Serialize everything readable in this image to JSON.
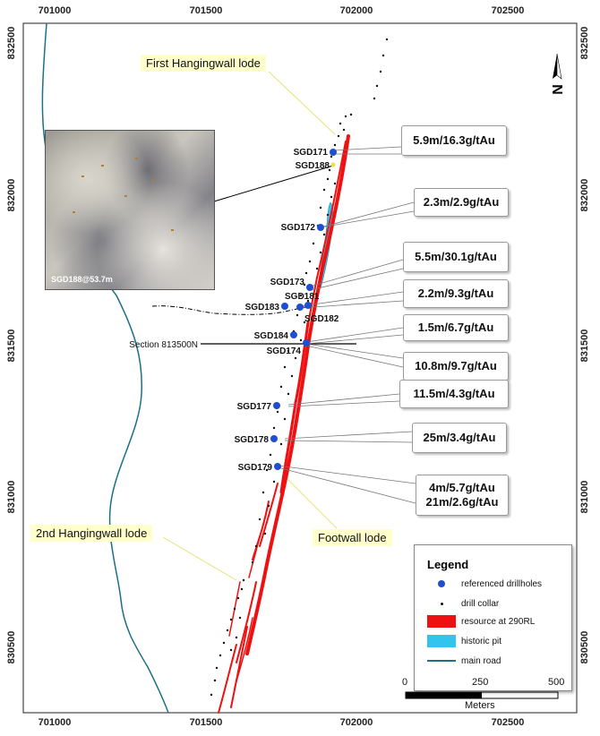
{
  "axes": {
    "x_ticks": [
      "701000",
      "701500",
      "702000",
      "702500"
    ],
    "y_ticks": [
      "832500",
      "832000",
      "831500",
      "831000",
      "830500"
    ]
  },
  "drillholes": [
    "SGD171",
    "SGD188",
    "SGD172",
    "SGD173",
    "SGD181",
    "SGD183",
    "SGD182",
    "SGD184",
    "SGD174",
    "SGD177",
    "SGD178",
    "SGD179"
  ],
  "callouts": [
    "5.9m/16.3g/tAu",
    "2.3m/2.9g/tAu",
    "5.5m/30.1g/tAu",
    "2.2m/9.3g/tAu",
    "1.5m/6.7g/tAu",
    "10.8m/9.7g/tAu",
    "11.5m/4.3g/tAu",
    "25m/3.4g/tAu",
    "4m/5.7g/tAu",
    "21m/2.6g/tAu"
  ],
  "lodes": {
    "first": "First Hangingwall lode",
    "second": "2nd Hangingwall lode",
    "footwall": "Footwall lode"
  },
  "section_label": "Section 813500N",
  "photo_caption": "SGD188@53.7m",
  "north_label": "N",
  "legend": {
    "title": "Legend",
    "items": [
      "referenced drillholes",
      "drill collar",
      "resource at 290RL",
      "historic pit",
      "main road"
    ]
  },
  "scale": {
    "labels": [
      "0",
      "250",
      "500"
    ],
    "unit": "Meters"
  },
  "colors": {
    "drillhole": "#1f4fd1",
    "resource": "#ee1111",
    "pit": "#33c4ee",
    "road": "#1e6f88"
  }
}
